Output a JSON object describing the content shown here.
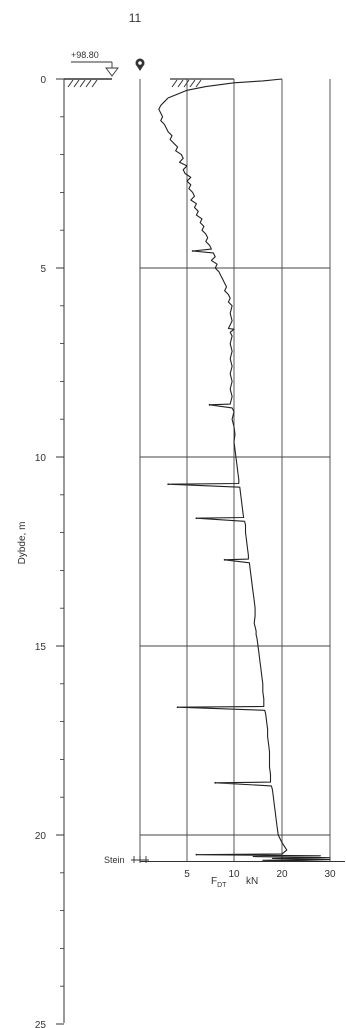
{
  "chart_data": {
    "type": "line",
    "title": "11",
    "elevation_label": "+98.80",
    "ylabel": "Dybde, m",
    "xlabel_main": "F",
    "xlabel_sub": "DT",
    "xlabel_unit": "kN",
    "y_ticks": [
      0,
      5,
      10,
      15,
      20,
      25
    ],
    "x_ticks": [
      5,
      10,
      20,
      30
    ],
    "stein_label": "Stein",
    "ylim": [
      0,
      25
    ],
    "axis_note": "x axis: 0-10 kN linear, 10-30 kN compressed scale",
    "series": [
      {
        "depth": [
          0.0,
          0.05,
          0.1,
          0.2,
          0.3,
          0.4,
          0.5,
          0.6,
          0.7,
          0.8,
          0.9,
          1.0,
          1.1,
          1.2,
          1.3,
          1.4,
          1.5,
          1.6,
          1.7,
          1.8,
          1.9,
          2.0,
          2.1,
          2.2,
          2.3,
          2.4,
          2.5,
          2.6,
          2.7,
          2.8,
          2.9,
          3.0,
          3.1,
          3.2,
          3.3,
          3.4,
          3.5,
          3.6,
          3.7,
          3.8,
          3.9,
          4.0,
          4.1,
          4.2,
          4.3,
          4.4,
          4.5,
          4.55,
          4.6,
          4.7,
          4.8,
          4.9,
          5.0,
          5.1,
          5.2,
          5.3,
          5.4,
          5.5,
          5.6,
          5.7,
          5.8,
          5.9,
          6.0,
          6.2,
          6.4,
          6.6,
          6.62,
          6.7,
          6.8,
          7.0,
          7.2,
          7.4,
          7.6,
          7.8,
          8.0,
          8.2,
          8.4,
          8.6,
          8.62,
          8.7,
          8.8,
          9.0,
          9.2,
          9.4,
          9.6,
          9.8,
          10.0,
          10.2,
          10.4,
          10.6,
          10.7,
          10.72,
          10.8,
          11.0,
          11.2,
          11.4,
          11.6,
          11.62,
          11.7,
          11.8,
          12.0,
          12.2,
          12.4,
          12.6,
          12.7,
          12.72,
          12.8,
          13.0,
          13.2,
          13.4,
          13.6,
          13.8,
          14.0,
          14.2,
          14.4,
          14.6,
          14.7,
          14.8,
          15.0,
          15.2,
          15.4,
          15.6,
          15.8,
          16.0,
          16.2,
          16.4,
          16.6,
          16.62,
          16.7,
          16.8,
          17.0,
          17.2,
          17.4,
          17.6,
          17.8,
          18.0,
          18.2,
          18.4,
          18.6,
          18.62,
          18.7,
          18.8,
          19.0,
          19.2,
          19.4,
          19.6,
          19.8,
          20.0,
          20.2,
          20.4,
          20.5,
          20.52,
          20.55,
          20.57,
          20.6,
          20.62,
          20.65,
          20.67,
          20.7
        ],
        "force": [
          20.0,
          16.0,
          10.0,
          7.0,
          5.0,
          4.0,
          3.0,
          2.6,
          2.2,
          2.0,
          2.2,
          2.4,
          2.2,
          2.6,
          2.8,
          3.0,
          3.4,
          3.2,
          3.6,
          4.0,
          3.8,
          4.4,
          4.6,
          4.2,
          5.0,
          4.6,
          4.8,
          5.4,
          5.0,
          5.4,
          5.2,
          5.6,
          5.8,
          5.4,
          6.0,
          5.8,
          6.2,
          6.0,
          6.6,
          6.4,
          6.8,
          6.6,
          7.0,
          7.2,
          7.0,
          7.4,
          7.6,
          5.6,
          7.8,
          8.0,
          7.6,
          8.2,
          8.0,
          8.4,
          8.6,
          8.8,
          9.0,
          9.2,
          9.0,
          9.4,
          9.6,
          9.4,
          9.8,
          9.6,
          9.8,
          9.4,
          10.0,
          9.6,
          9.8,
          9.6,
          9.8,
          9.6,
          9.8,
          9.6,
          9.8,
          9.6,
          9.8,
          9.6,
          7.4,
          9.8,
          10.0,
          9.8,
          10.0,
          10.2,
          10.0,
          10.2,
          10.4,
          10.6,
          10.8,
          11.0,
          11.0,
          3.0,
          11.2,
          11.4,
          11.6,
          11.8,
          12.0,
          6.0,
          12.2,
          12.4,
          12.4,
          12.6,
          12.8,
          13.0,
          13.0,
          9.0,
          13.2,
          13.4,
          13.6,
          13.8,
          14.0,
          14.2,
          14.4,
          14.4,
          14.2,
          14.6,
          14.6,
          14.8,
          15.0,
          15.2,
          15.4,
          15.6,
          15.8,
          16.0,
          16.0,
          16.2,
          16.2,
          4.0,
          16.4,
          16.6,
          16.8,
          17.0,
          17.0,
          17.2,
          17.4,
          17.4,
          17.4,
          17.6,
          17.6,
          8.0,
          17.8,
          18.0,
          18.2,
          18.4,
          18.6,
          18.8,
          19.0,
          19.2,
          20.0,
          21.0,
          20.0,
          6.0,
          28.0,
          14.0,
          30.0,
          18.0,
          30.0,
          16.0,
          30.0
        ]
      }
    ],
    "spikes": [
      {
        "depth": 4.55,
        "force": 5.6
      },
      {
        "depth": 8.62,
        "force": 7.4
      },
      {
        "depth": 10.72,
        "force": 3.0
      },
      {
        "depth": 11.62,
        "force": 6.0
      },
      {
        "depth": 12.72,
        "force": 9.0
      },
      {
        "depth": 16.62,
        "force": 4.0
      },
      {
        "depth": 18.62,
        "force": 8.0
      },
      {
        "depth": 20.52,
        "force": 6.0
      }
    ]
  }
}
